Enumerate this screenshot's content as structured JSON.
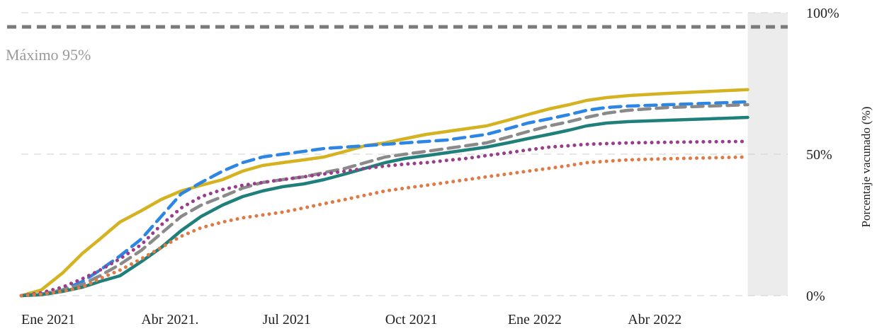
{
  "chart_data": {
    "type": "line",
    "title": "",
    "xlabel": "",
    "ylabel": "Porcentaje vacunado (%)",
    "xlim": [
      "2021-01-01",
      "2022-07-30"
    ],
    "ylim": [
      0,
      100
    ],
    "x_ticks": [
      {
        "date": "2021-01-01",
        "label": "Ene 2021"
      },
      {
        "date": "2021-04-01",
        "label": "Abr 2021."
      },
      {
        "date": "2021-07-01",
        "label": "Jul 2021"
      },
      {
        "date": "2021-10-01",
        "label": "Oct 2021"
      },
      {
        "date": "2022-01-01",
        "label": "Ene 2022"
      },
      {
        "date": "2022-04-01",
        "label": "Abr 2022"
      }
    ],
    "y_ticks": [
      {
        "value": 0,
        "label": "0%"
      },
      {
        "value": 50,
        "label": "50%"
      },
      {
        "value": 100,
        "label": "100%"
      }
    ],
    "grid": true,
    "y_axis_side": "right",
    "reference_line": {
      "value": 95,
      "label": "Máximo 95%"
    },
    "highlight_band": {
      "from": "2022-06-30",
      "to": "2022-07-30"
    },
    "series": [
      {
        "color": "#d4b220",
        "style": "solid",
        "points": [
          [
            "2021-01-01",
            0
          ],
          [
            "2021-01-16",
            2
          ],
          [
            "2021-02-01",
            8
          ],
          [
            "2021-02-16",
            15
          ],
          [
            "2021-03-01",
            20
          ],
          [
            "2021-03-16",
            26
          ],
          [
            "2021-04-01",
            30
          ],
          [
            "2021-04-16",
            34
          ],
          [
            "2021-05-01",
            37
          ],
          [
            "2021-05-16",
            39
          ],
          [
            "2021-06-01",
            41
          ],
          [
            "2021-06-16",
            44
          ],
          [
            "2021-07-01",
            46
          ],
          [
            "2021-07-16",
            47
          ],
          [
            "2021-08-01",
            48
          ],
          [
            "2021-08-16",
            49
          ],
          [
            "2021-09-01",
            51
          ],
          [
            "2021-09-16",
            53
          ],
          [
            "2021-10-01",
            54
          ],
          [
            "2021-10-16",
            55.5
          ],
          [
            "2021-11-01",
            57
          ],
          [
            "2021-11-16",
            58
          ],
          [
            "2021-12-01",
            59
          ],
          [
            "2021-12-16",
            60
          ],
          [
            "2022-01-01",
            62
          ],
          [
            "2022-01-16",
            64
          ],
          [
            "2022-02-01",
            66
          ],
          [
            "2022-02-16",
            67.5
          ],
          [
            "2022-03-01",
            69
          ],
          [
            "2022-03-16",
            70
          ],
          [
            "2022-04-01",
            70.7
          ],
          [
            "2022-05-01",
            71.5
          ],
          [
            "2022-06-01",
            72.2
          ],
          [
            "2022-06-30",
            72.8
          ]
        ]
      },
      {
        "color": "#2d86e3",
        "style": "dashed",
        "points": [
          [
            "2021-01-01",
            0
          ],
          [
            "2021-01-16",
            0.5
          ],
          [
            "2021-02-01",
            2
          ],
          [
            "2021-02-16",
            5
          ],
          [
            "2021-03-01",
            9
          ],
          [
            "2021-03-16",
            14
          ],
          [
            "2021-04-01",
            20
          ],
          [
            "2021-04-16",
            28
          ],
          [
            "2021-05-01",
            36
          ],
          [
            "2021-05-16",
            40
          ],
          [
            "2021-06-01",
            44
          ],
          [
            "2021-06-16",
            47
          ],
          [
            "2021-07-01",
            49
          ],
          [
            "2021-07-16",
            50
          ],
          [
            "2021-08-01",
            51
          ],
          [
            "2021-08-16",
            52
          ],
          [
            "2021-09-01",
            52.5
          ],
          [
            "2021-09-16",
            53
          ],
          [
            "2021-10-01",
            53.5
          ],
          [
            "2021-10-16",
            54
          ],
          [
            "2021-11-01",
            54.5
          ],
          [
            "2021-11-16",
            55
          ],
          [
            "2021-12-01",
            56
          ],
          [
            "2021-12-16",
            57
          ],
          [
            "2022-01-01",
            59
          ],
          [
            "2022-01-16",
            61
          ],
          [
            "2022-02-01",
            62.5
          ],
          [
            "2022-02-16",
            64
          ],
          [
            "2022-03-01",
            65.5
          ],
          [
            "2022-03-16",
            66.5
          ],
          [
            "2022-04-01",
            67
          ],
          [
            "2022-05-01",
            67.5
          ],
          [
            "2022-06-01",
            68
          ],
          [
            "2022-06-30",
            68.5
          ]
        ]
      },
      {
        "color": "#8a8a8a",
        "style": "dashed",
        "points": [
          [
            "2021-01-01",
            0
          ],
          [
            "2021-01-16",
            0.5
          ],
          [
            "2021-02-01",
            2
          ],
          [
            "2021-02-16",
            4
          ],
          [
            "2021-03-01",
            7
          ],
          [
            "2021-03-16",
            11
          ],
          [
            "2021-04-01",
            16
          ],
          [
            "2021-04-16",
            22
          ],
          [
            "2021-05-01",
            28
          ],
          [
            "2021-05-16",
            32
          ],
          [
            "2021-06-01",
            35
          ],
          [
            "2021-06-16",
            38
          ],
          [
            "2021-07-01",
            40
          ],
          [
            "2021-07-16",
            41
          ],
          [
            "2021-08-01",
            42
          ],
          [
            "2021-08-16",
            43.5
          ],
          [
            "2021-09-01",
            45
          ],
          [
            "2021-09-16",
            47
          ],
          [
            "2021-10-01",
            49
          ],
          [
            "2021-10-16",
            50
          ],
          [
            "2021-11-01",
            51
          ],
          [
            "2021-11-16",
            52
          ],
          [
            "2021-12-01",
            53
          ],
          [
            "2021-12-16",
            54
          ],
          [
            "2022-01-01",
            56
          ],
          [
            "2022-01-16",
            58
          ],
          [
            "2022-02-01",
            60
          ],
          [
            "2022-02-16",
            61.5
          ],
          [
            "2022-03-01",
            63
          ],
          [
            "2022-03-16",
            64.5
          ],
          [
            "2022-04-01",
            65.5
          ],
          [
            "2022-05-01",
            66.5
          ],
          [
            "2022-06-01",
            67
          ],
          [
            "2022-06-30",
            67.5
          ]
        ]
      },
      {
        "color": "#1f7f7a",
        "style": "solid",
        "points": [
          [
            "2021-01-01",
            0
          ],
          [
            "2021-01-16",
            0.3
          ],
          [
            "2021-02-01",
            1.5
          ],
          [
            "2021-02-16",
            3
          ],
          [
            "2021-03-01",
            5
          ],
          [
            "2021-03-16",
            7
          ],
          [
            "2021-04-01",
            12
          ],
          [
            "2021-04-16",
            17
          ],
          [
            "2021-05-01",
            23
          ],
          [
            "2021-05-16",
            28
          ],
          [
            "2021-06-01",
            32
          ],
          [
            "2021-06-16",
            35
          ],
          [
            "2021-07-01",
            37
          ],
          [
            "2021-07-16",
            38.5
          ],
          [
            "2021-08-01",
            39.5
          ],
          [
            "2021-08-16",
            41
          ],
          [
            "2021-09-01",
            43
          ],
          [
            "2021-09-16",
            45
          ],
          [
            "2021-10-01",
            47
          ],
          [
            "2021-10-16",
            48.5
          ],
          [
            "2021-11-01",
            49.5
          ],
          [
            "2021-11-16",
            50.5
          ],
          [
            "2021-12-01",
            51.5
          ],
          [
            "2021-12-16",
            52.5
          ],
          [
            "2022-01-01",
            54
          ],
          [
            "2022-01-16",
            55.5
          ],
          [
            "2022-02-01",
            57
          ],
          [
            "2022-02-16",
            58.5
          ],
          [
            "2022-03-01",
            60
          ],
          [
            "2022-03-16",
            61
          ],
          [
            "2022-04-01",
            61.5
          ],
          [
            "2022-05-01",
            62
          ],
          [
            "2022-06-01",
            62.5
          ],
          [
            "2022-06-30",
            63
          ]
        ]
      },
      {
        "color": "#9a3d8c",
        "style": "dotted",
        "points": [
          [
            "2021-01-01",
            0
          ],
          [
            "2021-01-16",
            1
          ],
          [
            "2021-02-01",
            3
          ],
          [
            "2021-02-16",
            6
          ],
          [
            "2021-03-01",
            9
          ],
          [
            "2021-03-16",
            13
          ],
          [
            "2021-04-01",
            18
          ],
          [
            "2021-04-16",
            25
          ],
          [
            "2021-05-01",
            31
          ],
          [
            "2021-05-16",
            35
          ],
          [
            "2021-06-01",
            37.5
          ],
          [
            "2021-06-16",
            39
          ],
          [
            "2021-07-01",
            40
          ],
          [
            "2021-07-16",
            41
          ],
          [
            "2021-08-01",
            42
          ],
          [
            "2021-08-16",
            43
          ],
          [
            "2021-09-01",
            44
          ],
          [
            "2021-09-16",
            45
          ],
          [
            "2021-10-01",
            45.8
          ],
          [
            "2021-10-16",
            46.5
          ],
          [
            "2021-11-01",
            47
          ],
          [
            "2021-11-16",
            47.8
          ],
          [
            "2021-12-01",
            48.5
          ],
          [
            "2021-12-16",
            49.5
          ],
          [
            "2022-01-01",
            50.5
          ],
          [
            "2022-01-16",
            51.5
          ],
          [
            "2022-02-01",
            52.5
          ],
          [
            "2022-02-16",
            53
          ],
          [
            "2022-03-01",
            53.5
          ],
          [
            "2022-04-01",
            54
          ],
          [
            "2022-05-01",
            54.2
          ],
          [
            "2022-06-01",
            54.4
          ],
          [
            "2022-06-30",
            54.5
          ]
        ]
      },
      {
        "color": "#e07a45",
        "style": "dotted",
        "points": [
          [
            "2021-01-01",
            0
          ],
          [
            "2021-01-16",
            0.5
          ],
          [
            "2021-02-01",
            1.5
          ],
          [
            "2021-02-16",
            3
          ],
          [
            "2021-03-01",
            6
          ],
          [
            "2021-03-16",
            9
          ],
          [
            "2021-04-01",
            13
          ],
          [
            "2021-04-16",
            17
          ],
          [
            "2021-05-01",
            21
          ],
          [
            "2021-05-16",
            24
          ],
          [
            "2021-06-01",
            26
          ],
          [
            "2021-06-16",
            27.5
          ],
          [
            "2021-07-01",
            28.5
          ],
          [
            "2021-07-16",
            29.5
          ],
          [
            "2021-08-01",
            31
          ],
          [
            "2021-08-16",
            32.5
          ],
          [
            "2021-09-01",
            34
          ],
          [
            "2021-09-16",
            35.5
          ],
          [
            "2021-10-01",
            37
          ],
          [
            "2021-10-16",
            38
          ],
          [
            "2021-11-01",
            39
          ],
          [
            "2021-11-16",
            40
          ],
          [
            "2021-12-01",
            41
          ],
          [
            "2021-12-16",
            42
          ],
          [
            "2022-01-01",
            43
          ],
          [
            "2022-01-16",
            44
          ],
          [
            "2022-02-01",
            45
          ],
          [
            "2022-02-16",
            46
          ],
          [
            "2022-03-01",
            47
          ],
          [
            "2022-03-16",
            47.5
          ],
          [
            "2022-04-01",
            48
          ],
          [
            "2022-05-01",
            48.4
          ],
          [
            "2022-06-01",
            48.7
          ],
          [
            "2022-06-30",
            49
          ]
        ]
      }
    ]
  }
}
